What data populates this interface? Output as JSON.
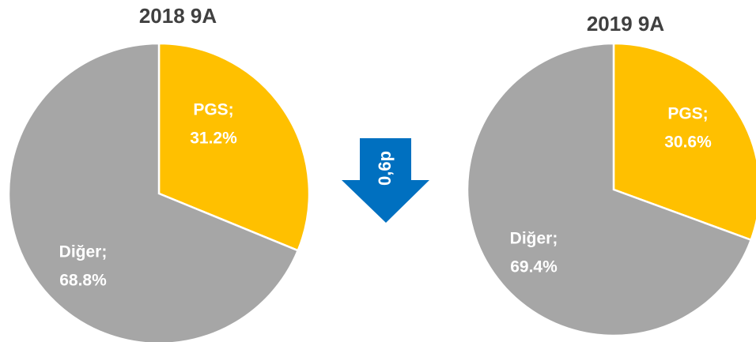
{
  "chart_data": [
    {
      "type": "pie",
      "title": "2018 9A",
      "categories": [
        "PGS;",
        "Diğer;"
      ],
      "values": [
        31.2,
        68.8
      ],
      "value_labels": [
        "31.2%",
        "68.8%"
      ],
      "colors": [
        "#FFC000",
        "#A6A6A6"
      ]
    },
    {
      "type": "pie",
      "title": "2019 9A",
      "categories": [
        "PGS;",
        "Diğer;"
      ],
      "values": [
        30.6,
        69.4
      ],
      "value_labels": [
        "30.6%",
        "69.4%"
      ],
      "colors": [
        "#FFC000",
        "#A6A6A6"
      ]
    }
  ],
  "annotation": "0,6p"
}
